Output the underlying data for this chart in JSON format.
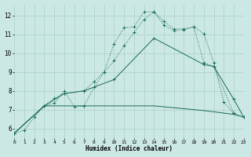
{
  "xlabel": "Humidex (Indice chaleur)",
  "bg_color": "#cce8e4",
  "grid_color": "#aacfca",
  "line_color": "#1a6b5a",
  "xlim": [
    0,
    23
  ],
  "ylim": [
    5.5,
    12.6
  ],
  "xticks": [
    0,
    1,
    2,
    3,
    4,
    5,
    6,
    7,
    8,
    9,
    10,
    11,
    12,
    13,
    14,
    15,
    16,
    17,
    18,
    19,
    20,
    21,
    22,
    23
  ],
  "yticks": [
    6,
    7,
    8,
    9,
    10,
    11,
    12
  ],
  "line1_x": [
    0,
    1,
    2,
    3,
    4,
    5,
    6,
    7,
    8,
    9,
    10,
    11,
    12,
    13,
    14,
    15,
    16,
    17,
    18,
    19,
    20,
    21,
    22
  ],
  "line1_y": [
    5.75,
    5.9,
    6.6,
    7.2,
    7.35,
    8.0,
    7.15,
    7.2,
    8.2,
    9.0,
    10.5,
    11.35,
    11.4,
    12.2,
    12.2,
    11.5,
    11.2,
    11.25,
    11.4,
    11.05,
    9.5,
    7.4,
    6.8
  ],
  "line2_x": [
    0,
    3,
    4,
    5,
    7,
    8,
    9,
    10,
    11,
    12,
    13,
    14,
    15,
    16,
    17,
    18,
    19,
    20,
    22,
    23
  ],
  "line2_y": [
    5.75,
    7.2,
    7.6,
    7.85,
    8.0,
    8.5,
    9.0,
    9.6,
    10.4,
    11.1,
    11.8,
    12.2,
    11.7,
    11.3,
    11.3,
    11.4,
    9.5,
    9.3,
    6.8,
    6.6
  ],
  "line3_x": [
    0,
    3,
    5,
    7,
    10,
    14,
    19,
    20,
    22,
    23
  ],
  "line3_y": [
    5.75,
    7.2,
    7.85,
    8.0,
    8.6,
    10.8,
    9.4,
    9.3,
    7.55,
    6.6
  ],
  "line4_x": [
    0,
    3,
    7,
    14,
    19,
    22,
    23
  ],
  "line4_y": [
    5.75,
    7.2,
    7.2,
    7.2,
    6.95,
    6.75,
    6.6
  ]
}
